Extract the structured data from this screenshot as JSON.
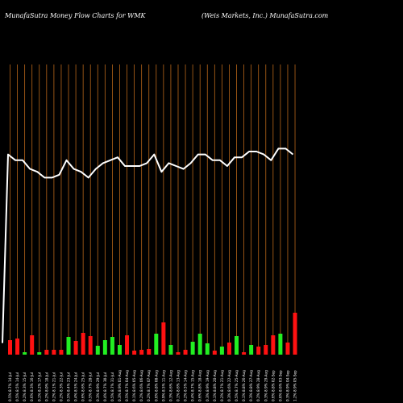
{
  "header": {
    "left_title": "MunafaSutra  Money Flow  Charts for WMK",
    "right_title": "(Weis Markets, Inc.) MunafaSutra.com"
  },
  "colors": {
    "background": "#000000",
    "gridline": "#b8661a",
    "line": "#ffffff",
    "bar_up": "#22ee22",
    "bar_down": "#ff1111"
  },
  "chart_data": {
    "type": "bar",
    "grid": "vertical",
    "categories": [
      "0.5% 8.7% 14-Jul",
      "0.5% 8.5% 14-Jul",
      "0.2% 8.3% 15-Jul",
      "0.6% 8.3% 16-Jul",
      "0.1% 8.2% 17-Jul",
      "0.2% 8.0% 18-Jul",
      "0.2% 8.1% 21-Jul",
      "0.2% 8.3% 22-Jul",
      "0.5% 8.4% 23-Jul",
      "0.4% 8.5% 24-Jul",
      "0.6% 8.6% 25-Jul",
      "0.5% 8.7% 28-Jul",
      "0.3% 8.9% 29-Jul",
      "0.4% 8.7% 30-Jul",
      "0.5% 8.7% 31-Jul",
      "0.3% 8.9% 01-Aug",
      "0.5% 8.7% 04-Aug",
      "0.1% 8.6% 05-Aug",
      "0.2% 8.6% 06-Aug",
      "0.2% 8.7% 07-Aug",
      "0.6% 8.8% 08-Aug",
      "0.9% 8.5% 11-Aug",
      "0.3% 8.6% 12-Aug",
      "0.1% 8.6% 13-Aug",
      "0.2% 8.5% 14-Aug",
      "0.4% 8.7% 15-Aug",
      "0.6% 8.8% 18-Aug",
      "0.3% 8.9% 19-Aug",
      "0.1% 8.8% 20-Aug",
      "0.2% 8.7% 21-Aug",
      "0.3% 8.6% 22-Aug",
      "0.5% 8.7% 25-Aug",
      "0.1% 8.8% 26-Aug",
      "0.3% 8.8% 27-Aug",
      "0.2% 8.9% 28-Aug",
      "0.3% 8.9% 29-Aug",
      "0.6% 8.8% 02-Sep",
      "0.6% 8.6% 03-Sep",
      "0.3% 8.9% 04-Sep",
      "1.2% 8.9% 05-Sep"
    ],
    "bars": [
      {
        "value": 18,
        "direction": "down"
      },
      {
        "value": 20,
        "direction": "down"
      },
      {
        "value": 3,
        "direction": "up"
      },
      {
        "value": 24,
        "direction": "down"
      },
      {
        "value": 3,
        "direction": "up"
      },
      {
        "value": 6,
        "direction": "down"
      },
      {
        "value": 6,
        "direction": "down"
      },
      {
        "value": 6,
        "direction": "down"
      },
      {
        "value": 22,
        "direction": "up"
      },
      {
        "value": 17,
        "direction": "down"
      },
      {
        "value": 27,
        "direction": "down"
      },
      {
        "value": 23,
        "direction": "down"
      },
      {
        "value": 11,
        "direction": "up"
      },
      {
        "value": 18,
        "direction": "up"
      },
      {
        "value": 22,
        "direction": "up"
      },
      {
        "value": 12,
        "direction": "up"
      },
      {
        "value": 24,
        "direction": "down"
      },
      {
        "value": 5,
        "direction": "down"
      },
      {
        "value": 6,
        "direction": "down"
      },
      {
        "value": 7,
        "direction": "down"
      },
      {
        "value": 26,
        "direction": "up"
      },
      {
        "value": 40,
        "direction": "down"
      },
      {
        "value": 12,
        "direction": "up"
      },
      {
        "value": 3,
        "direction": "down"
      },
      {
        "value": 6,
        "direction": "down"
      },
      {
        "value": 16,
        "direction": "up"
      },
      {
        "value": 26,
        "direction": "up"
      },
      {
        "value": 14,
        "direction": "up"
      },
      {
        "value": 5,
        "direction": "down"
      },
      {
        "value": 10,
        "direction": "up"
      },
      {
        "value": 15,
        "direction": "down"
      },
      {
        "value": 23,
        "direction": "up"
      },
      {
        "value": 3,
        "direction": "down"
      },
      {
        "value": 12,
        "direction": "up"
      },
      {
        "value": 10,
        "direction": "down"
      },
      {
        "value": 12,
        "direction": "down"
      },
      {
        "value": 24,
        "direction": "down"
      },
      {
        "value": 26,
        "direction": "up"
      },
      {
        "value": 15,
        "direction": "down"
      },
      {
        "value": 52,
        "direction": "down"
      }
    ],
    "line": {
      "start_value": 4,
      "values": [
        69,
        67,
        67,
        64,
        63,
        61,
        61,
        62,
        67,
        64,
        63,
        61,
        64,
        66,
        67,
        68,
        65,
        65,
        65,
        66,
        69,
        63,
        66,
        65,
        64,
        66,
        69,
        69,
        67,
        67,
        65,
        68,
        68,
        70,
        70,
        69,
        67,
        71,
        71,
        69
      ]
    }
  }
}
